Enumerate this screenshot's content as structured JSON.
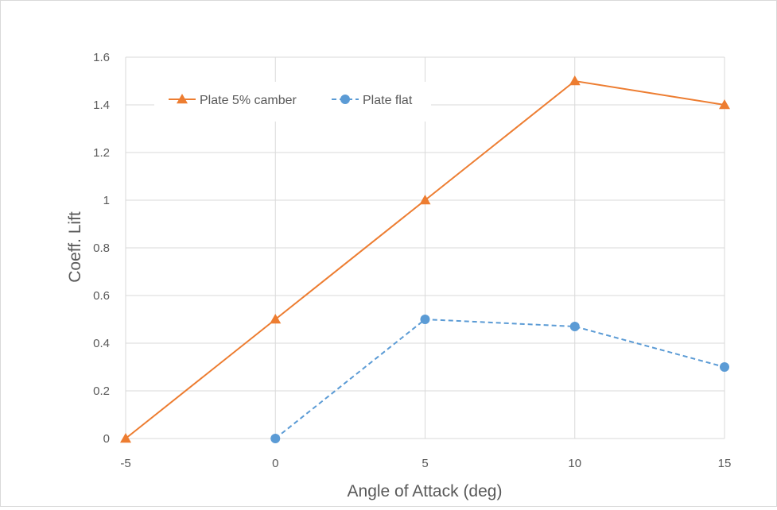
{
  "chart_data": {
    "type": "line",
    "title": "",
    "xlabel": "Angle of Attack (deg)",
    "ylabel": "Coeff. Lift",
    "x": [
      -5,
      0,
      5,
      10,
      15
    ],
    "xticks": [
      "-5",
      "0",
      "5",
      "10",
      "15"
    ],
    "yticks": [
      "0",
      "0.2",
      "0.4",
      "0.6",
      "0.8",
      "1",
      "1.2",
      "1.4",
      "1.6"
    ],
    "xlim": [
      -5,
      15
    ],
    "ylim": [
      0,
      1.6
    ],
    "grid": true,
    "legend": "top-left",
    "series": [
      {
        "name": "Plate 5% camber",
        "x": [
          -5,
          0,
          5,
          10,
          15
        ],
        "values": [
          0.0,
          0.5,
          1.0,
          1.5,
          1.4
        ],
        "color": "#ed7d31",
        "marker": "triangle",
        "dash": "solid"
      },
      {
        "name": "Plate flat",
        "x": [
          0,
          5,
          10,
          15
        ],
        "values": [
          0.0,
          0.5,
          0.47,
          0.3
        ],
        "color": "#5b9bd5",
        "marker": "circle",
        "dash": "dashed"
      }
    ]
  }
}
